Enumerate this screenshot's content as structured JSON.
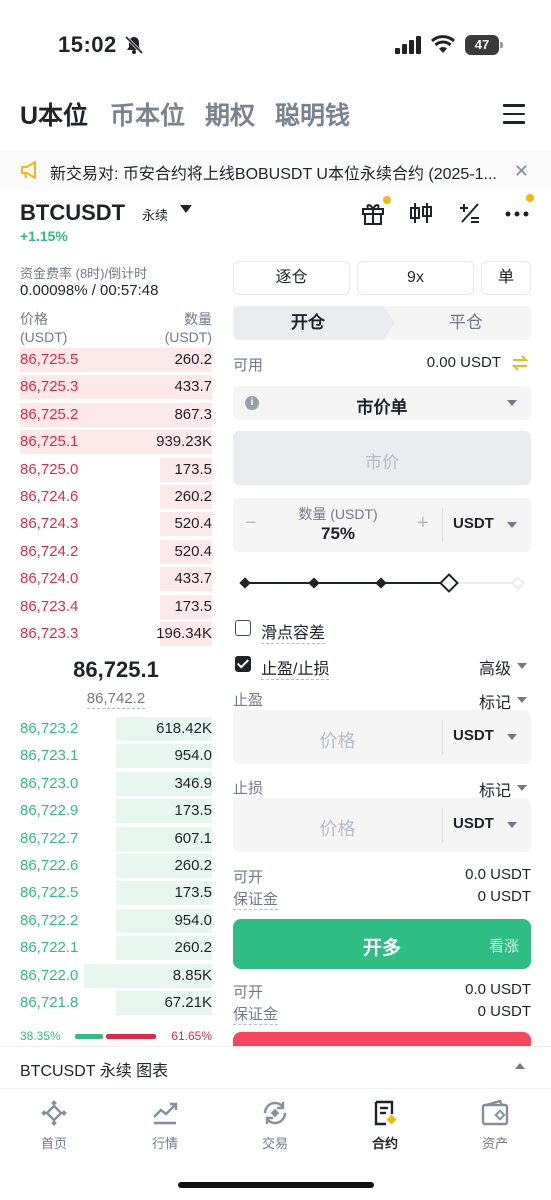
{
  "status_bar": {
    "time": "15:02",
    "battery": "47"
  },
  "top_tabs": [
    "U本位",
    "币本位",
    "期权",
    "聪明钱"
  ],
  "announcement": {
    "text": "新交易对: 币安合约将上线BOBUSDT U本位永续合约 (2025-1..."
  },
  "symbol": {
    "name": "BTCUSDT",
    "tag": "永续",
    "change": "+1.15%"
  },
  "funding": {
    "label": "资金费率 (8时)/倒计时",
    "value": "0.00098% / 00:57:48"
  },
  "orderbook": {
    "price_header": "价格",
    "price_unit": "(USDT)",
    "qty_header": "数量",
    "qty_unit": "(USDT)",
    "asks": [
      {
        "price": "86,725.5",
        "qty": "260.2"
      },
      {
        "price": "86,725.3",
        "qty": "433.7"
      },
      {
        "price": "86,725.2",
        "qty": "867.3"
      },
      {
        "price": "86,725.1",
        "qty": "939.23K"
      },
      {
        "price": "86,725.0",
        "qty": "173.5"
      },
      {
        "price": "86,724.6",
        "qty": "260.2"
      },
      {
        "price": "86,724.3",
        "qty": "520.4"
      },
      {
        "price": "86,724.2",
        "qty": "520.4"
      },
      {
        "price": "86,724.0",
        "qty": "433.7"
      },
      {
        "price": "86,723.4",
        "qty": "173.5"
      },
      {
        "price": "86,723.3",
        "qty": "196.34K"
      }
    ],
    "mid_price": "86,725.1",
    "mark_price": "86,742.2",
    "bids": [
      {
        "price": "86,723.2",
        "qty": "618.42K"
      },
      {
        "price": "86,723.1",
        "qty": "954.0"
      },
      {
        "price": "86,723.0",
        "qty": "346.9"
      },
      {
        "price": "86,722.9",
        "qty": "173.5"
      },
      {
        "price": "86,722.7",
        "qty": "607.1"
      },
      {
        "price": "86,722.6",
        "qty": "260.2"
      },
      {
        "price": "86,722.5",
        "qty": "173.5"
      },
      {
        "price": "86,722.2",
        "qty": "954.0"
      },
      {
        "price": "86,722.1",
        "qty": "260.2"
      },
      {
        "price": "86,722.0",
        "qty": "8.85K"
      },
      {
        "price": "86,721.8",
        "qty": "67.21K"
      }
    ],
    "buy_ratio": "38.35%",
    "sell_ratio": "61.65%"
  },
  "order_form": {
    "margin_mode": "逐仓",
    "leverage": "9x",
    "position_mode": "单",
    "open_tab": "开仓",
    "close_tab": "平仓",
    "available_label": "可用",
    "available_value": "0.00 USDT",
    "order_type": "市价单",
    "price_placeholder": "市价",
    "qty_label": "数量 (USDT)",
    "qty_value": "75%",
    "qty_unit": "USDT",
    "slippage_label": "滑点容差",
    "tpsl_label": "止盈/止损",
    "advanced_label": "高级",
    "tp_label": "止盈",
    "tp_trigger": "标记",
    "tp_placeholder": "价格",
    "tp_unit": "USDT",
    "sl_label": "止损",
    "sl_trigger": "标记",
    "sl_placeholder": "价格",
    "sl_unit": "USDT",
    "can_open_label": "可开",
    "can_open_value": "0.0 USDT",
    "margin_label": "保证金",
    "margin_value": "0 USDT",
    "long_button": "开多",
    "long_hint": "看涨",
    "can_open_label_2": "可开",
    "can_open_value_2": "0.0 USDT",
    "margin_label_2": "保证金",
    "margin_value_2": "0 USDT"
  },
  "chart_bar": {
    "text": "BTCUSDT 永续 图表"
  },
  "bottom_nav": [
    {
      "label": "首页",
      "icon": "home-icon"
    },
    {
      "label": "行情",
      "icon": "markets-icon"
    },
    {
      "label": "交易",
      "icon": "trade-icon"
    },
    {
      "label": "合约",
      "icon": "futures-icon"
    },
    {
      "label": "资产",
      "icon": "wallet-icon"
    }
  ],
  "colors": {
    "buy": "#2ebd85",
    "sell": "#e0294a",
    "accent": "#f0b90b"
  }
}
